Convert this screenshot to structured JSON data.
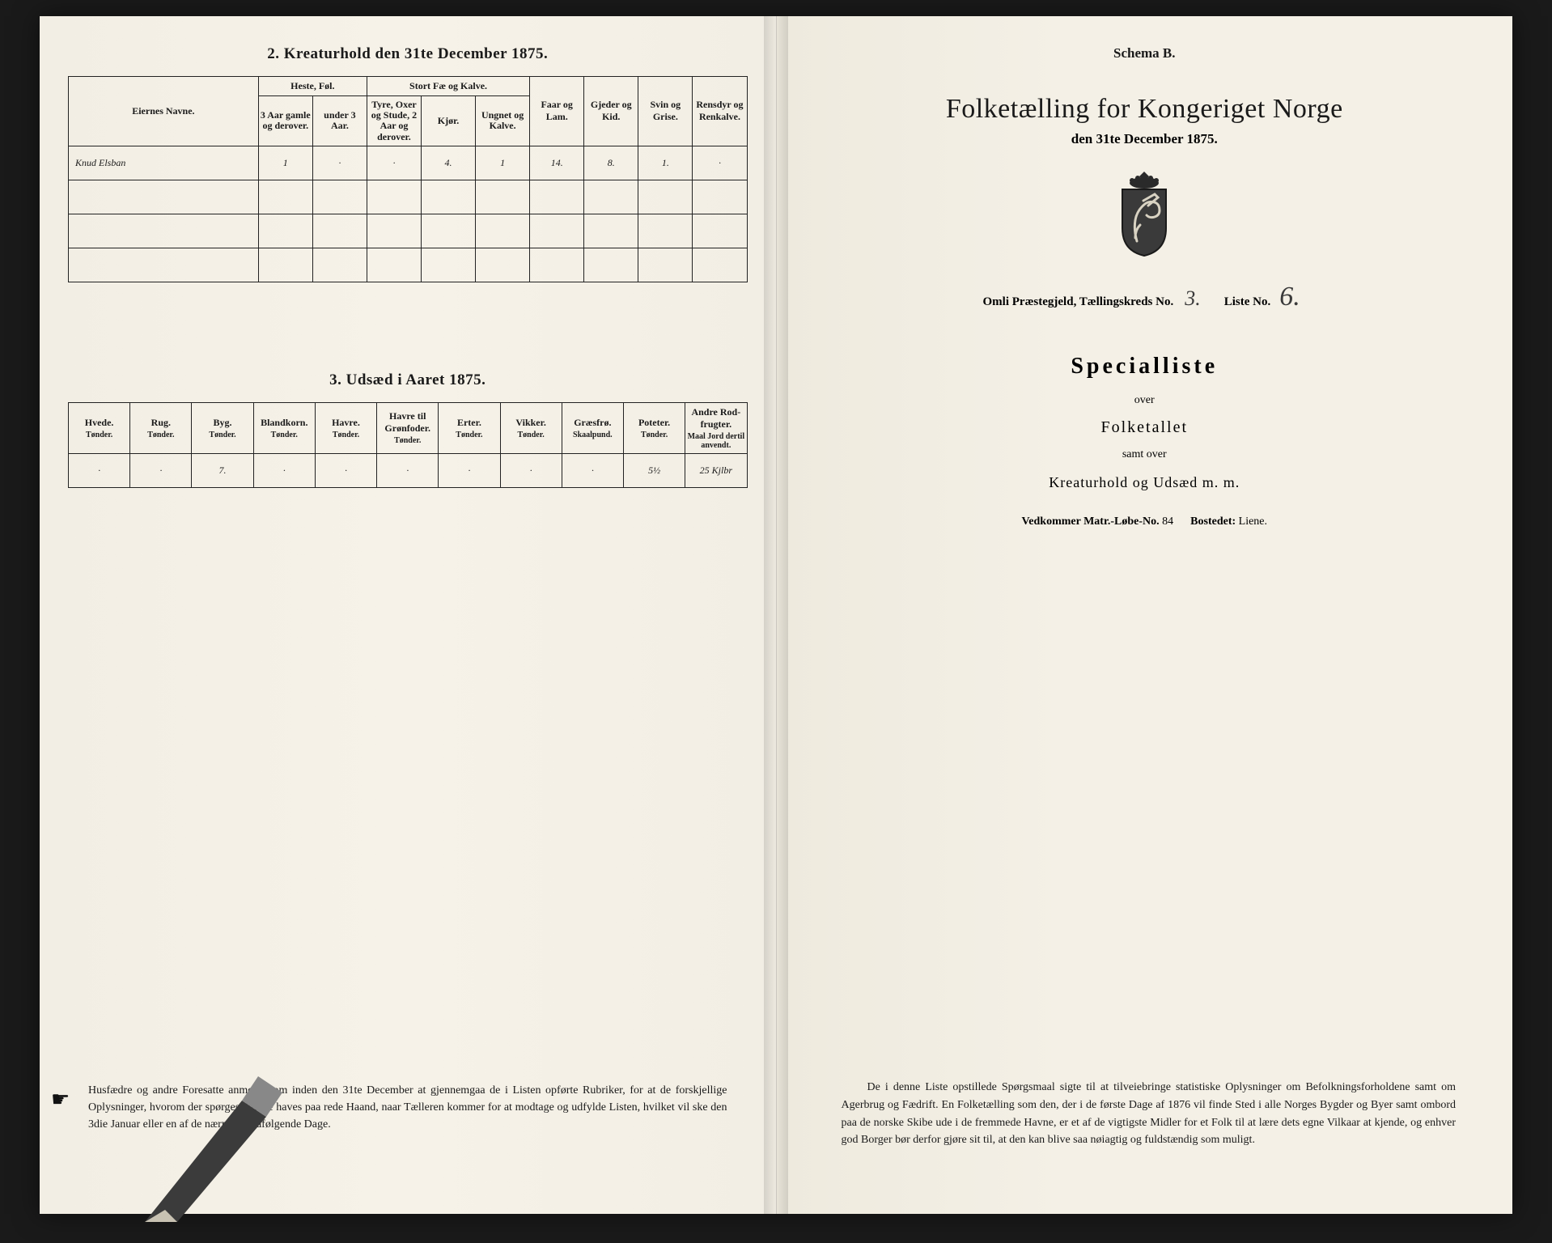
{
  "left": {
    "section2_title": "2.  Kreaturhold den 31te December 1875.",
    "table2": {
      "col_colors": {
        "border": "#222222",
        "text": "#1a1a1a"
      },
      "header": {
        "name": "Eiernes Navne.",
        "heste_group": "Heste, Føl.",
        "heste_a": "3 Aar gamle og derover.",
        "heste_b": "under 3 Aar.",
        "stort_group": "Stort Fæ og Kalve.",
        "stort_a": "Tyre, Oxer og Stude, 2 Aar og derover.",
        "stort_b": "Kjør.",
        "stort_c": "Ungnet og Kalve.",
        "faar": "Faar og Lam.",
        "gjeder": "Gjeder og Kid.",
        "svin": "Svin og Grise.",
        "rensdyr": "Rensdyr og Renkalve."
      },
      "row": {
        "name": "Knud Elsban",
        "heste_a": "1",
        "heste_b": "·",
        "stort_a": "·",
        "stort_b": "4.",
        "stort_c": "1",
        "faar": "14.",
        "gjeder": "8.",
        "svin": "1.",
        "rensdyr": "·"
      }
    },
    "section3_title": "3.  Udsæd i Aaret 1875.",
    "table3": {
      "headers": [
        {
          "l": "Hvede.",
          "u": "Tønder."
        },
        {
          "l": "Rug.",
          "u": "Tønder."
        },
        {
          "l": "Byg.",
          "u": "Tønder."
        },
        {
          "l": "Blandkorn.",
          "u": "Tønder."
        },
        {
          "l": "Havre.",
          "u": "Tønder."
        },
        {
          "l": "Havre til Grønfoder.",
          "u": "Tønder."
        },
        {
          "l": "Erter.",
          "u": "Tønder."
        },
        {
          "l": "Vikker.",
          "u": "Tønder."
        },
        {
          "l": "Græsfrø.",
          "u": "Skaalpund."
        },
        {
          "l": "Poteter.",
          "u": "Tønder."
        },
        {
          "l": "Andre Rod-frugter.",
          "u": "Maal Jord dertil anvendt."
        }
      ],
      "row": [
        "·",
        "·",
        "7.",
        "·",
        "·",
        "·",
        "·",
        "·",
        "·",
        "5½",
        "25 Kjlbr"
      ]
    },
    "footnote": "Husfædre og andre Foresatte anmodes om inden den 31te December at gjennemgaa de i Listen opførte Rubriker, for at de forskjellige Oplysninger, hvorom der spørges, kunne haves paa rede Haand, naar Tælleren kommer for at modtage og udfylde Listen, hvilket vil ske den 3die Januar eller en af de nærmest paafølgende Dage."
  },
  "right": {
    "schema": "Schema B.",
    "main_title": "Folketælling for Kongeriget Norge",
    "main_sub": "den 31te December 1875.",
    "field_line": {
      "praest_label": "Omli Præstegjeld,  Tællingskreds No.",
      "praest_val": "3.",
      "liste_label": "Liste No.",
      "liste_val": "6."
    },
    "spec_title": "Specialliste",
    "over": "over",
    "folketallet": "Folketallet",
    "samt_over": "samt over",
    "kreatur": "Kreaturhold og Udsæd m. m.",
    "vedk": {
      "label1": "Vedkommer Matr.-Løbe-No.",
      "val1": "84",
      "label2": "Bostedet:",
      "val2": "Liene."
    },
    "foot": "De i denne Liste opstillede Spørgsmaal sigte til at tilveiebringe statistiske Oplysninger om Befolkningsforholdene samt om Agerbrug og Fædrift.  En Folketælling som den, der i de første Dage af 1876 vil finde Sted i alle Norges Bygder og Byer samt ombord paa de norske Skibe ude i de fremmede Havne, er et af de vigtigste Midler for et Folk til at lære dets egne Vilkaar at kjende, og enhver god Borger bør derfor gjøre sit til, at den kan blive saa nøiagtig og fuldstændig som muligt."
  },
  "colors": {
    "paper": "#f4f0e8",
    "ink": "#1a1a1a",
    "handwriting": "#3a3a3a",
    "background": "#1a1a1a"
  }
}
